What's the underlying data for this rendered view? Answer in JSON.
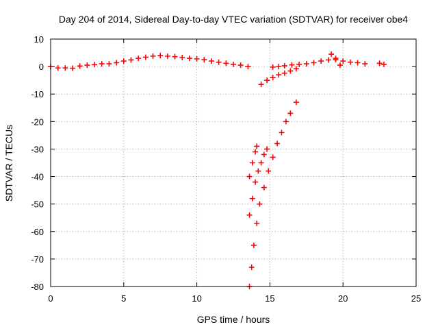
{
  "chart_data": {
    "type": "scatter",
    "title": "Day 204 of 2014, Sidereal Day-to-day VTEC variation (SDTVAR) for receiver obe4",
    "xlabel": "GPS time / hours",
    "ylabel": "SDTVAR / TECUs",
    "xlim": [
      0,
      25
    ],
    "ylim": [
      -80,
      10
    ],
    "xticks": [
      0,
      5,
      10,
      15,
      20,
      25
    ],
    "yticks": [
      -80,
      -70,
      -60,
      -50,
      -40,
      -30,
      -20,
      -10,
      0,
      10
    ],
    "grid": true,
    "marker": "plus",
    "series_color": "#ff0000",
    "series": [
      {
        "points": [
          [
            0,
            0
          ],
          [
            0.5,
            -0.5
          ],
          [
            1,
            -0.5
          ],
          [
            1.5,
            -0.6
          ],
          [
            2,
            0.2
          ],
          [
            2.5,
            0.5
          ],
          [
            3,
            0.7
          ],
          [
            3.5,
            1
          ],
          [
            4,
            1
          ],
          [
            4.5,
            1.4
          ],
          [
            5,
            2
          ],
          [
            5.5,
            2.4
          ],
          [
            6,
            3
          ],
          [
            6.5,
            3.4
          ],
          [
            7,
            3.8
          ],
          [
            7.5,
            4
          ],
          [
            8,
            3.8
          ],
          [
            8.5,
            3.6
          ],
          [
            9,
            3.3
          ],
          [
            9.5,
            3
          ],
          [
            10,
            2.8
          ],
          [
            10.5,
            2.5
          ],
          [
            11,
            2
          ],
          [
            11.5,
            1.6
          ],
          [
            12,
            1.2
          ],
          [
            12.5,
            0.8
          ],
          [
            13,
            0.5
          ],
          [
            13.5,
            0
          ],
          [
            14.4,
            -6.5
          ],
          [
            14.8,
            -5
          ],
          [
            15.2,
            -4
          ],
          [
            15.6,
            -3
          ],
          [
            16,
            -2.4
          ],
          [
            16.4,
            -1.6
          ],
          [
            16.8,
            -0.8
          ],
          [
            15.2,
            -0.2
          ],
          [
            15.6,
            0
          ],
          [
            16,
            0.3
          ],
          [
            16.5,
            0.6
          ],
          [
            17,
            0.8
          ],
          [
            17.5,
            1
          ],
          [
            18,
            1.4
          ],
          [
            18.5,
            2
          ],
          [
            19,
            2.4
          ],
          [
            19.5,
            2.5
          ],
          [
            20,
            2
          ],
          [
            20.5,
            1.6
          ],
          [
            21,
            1.4
          ],
          [
            21.5,
            1
          ],
          [
            19.2,
            4.5
          ],
          [
            19.5,
            3
          ],
          [
            19.8,
            0.5
          ],
          [
            22.5,
            1.2
          ],
          [
            22.8,
            0.8
          ],
          [
            13.6,
            -40
          ],
          [
            13.8,
            -35
          ],
          [
            14.0,
            -31
          ],
          [
            14.1,
            -29
          ],
          [
            13.6,
            -54
          ],
          [
            13.8,
            -48
          ],
          [
            14.0,
            -42
          ],
          [
            14.2,
            -38
          ],
          [
            14.4,
            -35
          ],
          [
            14.6,
            -32
          ],
          [
            14.8,
            -30
          ],
          [
            13.6,
            -80
          ],
          [
            13.75,
            -73
          ],
          [
            13.9,
            -65
          ],
          [
            14.1,
            -57
          ],
          [
            14.3,
            -50
          ],
          [
            14.6,
            -44
          ],
          [
            14.9,
            -38
          ],
          [
            15.2,
            -33
          ],
          [
            15.5,
            -28
          ],
          [
            15.8,
            -24
          ],
          [
            16.1,
            -20
          ],
          [
            16.4,
            -17
          ],
          [
            16.8,
            -13
          ]
        ]
      }
    ]
  }
}
